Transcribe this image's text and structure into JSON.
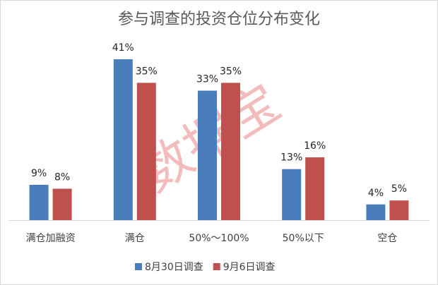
{
  "chart_data": {
    "type": "bar",
    "title": "参与调查的投资仓位分布变化",
    "watermark": "数据宝",
    "categories": [
      "满仓加融资",
      "满仓",
      "50%～100%",
      "50%以下",
      "空仓"
    ],
    "series": [
      {
        "name": "8月30日调查",
        "color": "#4a7ebb",
        "values": [
          9,
          41,
          33,
          13,
          4
        ],
        "value_labels": [
          "9%",
          "41%",
          "33%",
          "13%",
          "4%"
        ]
      },
      {
        "name": "9月6日调查",
        "color": "#c0504d",
        "values": [
          8,
          35,
          35,
          16,
          5
        ],
        "value_labels": [
          "8%",
          "35%",
          "35%",
          "16%",
          "5%"
        ]
      }
    ],
    "legend": "bottom"
  }
}
